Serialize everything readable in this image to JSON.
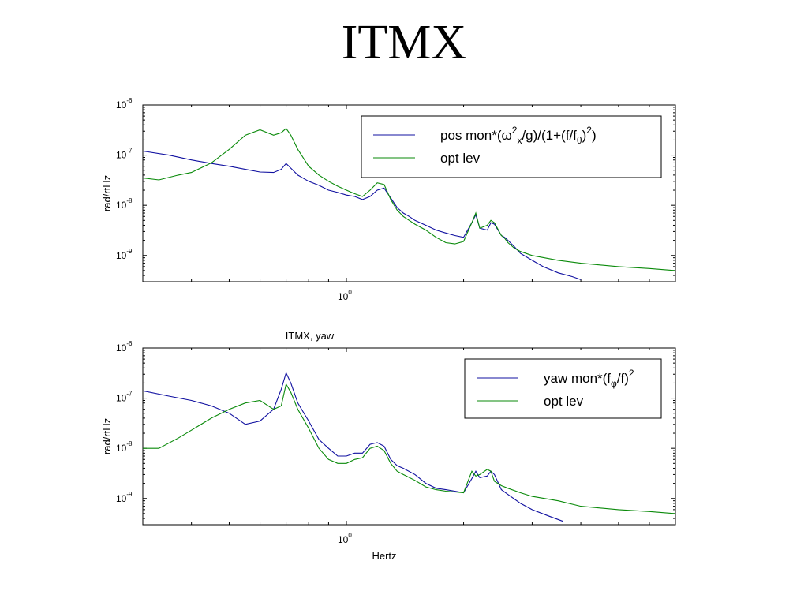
{
  "slide": {
    "title": "ITMX"
  },
  "colors": {
    "blue": "#1010a0",
    "green": "#0a8a0a",
    "frame": "#000000"
  },
  "chart_data": [
    {
      "type": "line",
      "title": "",
      "xlabel": "",
      "ylabel": "rad/rtHz",
      "x_scale": "log",
      "y_scale": "log",
      "xlim": [
        0.3,
        7.0
      ],
      "ylim": [
        3e-10,
        1e-06
      ],
      "x_tick_label": {
        "base": "10",
        "exp": "0"
      },
      "y_tick_labels": [
        {
          "base": "10",
          "exp": "-6"
        },
        {
          "base": "10",
          "exp": "-7"
        },
        {
          "base": "10",
          "exp": "-8"
        },
        {
          "base": "10",
          "exp": "-9"
        }
      ],
      "legend": {
        "position": "top-right",
        "entries": [
          {
            "pre": "pos mon*(ω",
            "sup1": "2",
            "sub1": "x",
            "mid": "/g)/(1+(f/f",
            "sub2": "θ",
            "post": ")",
            "sup2": "2",
            "end": ")"
          },
          {
            "label": "opt lev"
          }
        ]
      },
      "series": [
        {
          "name": "pos mon*(ωx2/g)/(1+(f/fθ)2)",
          "color": "blue",
          "x": [
            0.3,
            0.35,
            0.4,
            0.45,
            0.5,
            0.55,
            0.6,
            0.65,
            0.68,
            0.7,
            0.72,
            0.75,
            0.8,
            0.85,
            0.9,
            0.95,
            1.0,
            1.05,
            1.1,
            1.15,
            1.2,
            1.25,
            1.3,
            1.35,
            1.4,
            1.45,
            1.5,
            1.6,
            1.7,
            1.8,
            1.9,
            2.0,
            2.1,
            2.15,
            2.2,
            2.3,
            2.35,
            2.4,
            2.5,
            2.55,
            2.6,
            2.7,
            2.8,
            3.0,
            3.2,
            3.5,
            3.8,
            4.0
          ],
          "y": [
            1.2e-07,
            1e-07,
            8e-08,
            6.8e-08,
            6e-08,
            5.2e-08,
            4.6e-08,
            4.5e-08,
            5.2e-08,
            6.8e-08,
            5.5e-08,
            4e-08,
            3e-08,
            2.5e-08,
            2e-08,
            1.8e-08,
            1.6e-08,
            1.5e-08,
            1.3e-08,
            1.5e-08,
            2e-08,
            2.2e-08,
            1.4e-08,
            9e-09,
            7e-09,
            6e-09,
            5e-09,
            4e-09,
            3.2e-09,
            2.8e-09,
            2.5e-09,
            2.3e-09,
            4.5e-09,
            6.5e-09,
            3.5e-09,
            3.2e-09,
            4.5e-09,
            4.2e-09,
            2.5e-09,
            2.3e-09,
            2e-09,
            1.5e-09,
            1.1e-09,
            8e-10,
            6e-10,
            4.5e-10,
            3.8e-10,
            3.3e-10
          ]
        },
        {
          "name": "opt lev",
          "color": "green",
          "x": [
            0.3,
            0.33,
            0.37,
            0.4,
            0.45,
            0.5,
            0.55,
            0.6,
            0.65,
            0.68,
            0.7,
            0.72,
            0.75,
            0.8,
            0.85,
            0.9,
            0.95,
            1.0,
            1.05,
            1.1,
            1.15,
            1.2,
            1.25,
            1.3,
            1.35,
            1.4,
            1.45,
            1.5,
            1.6,
            1.7,
            1.8,
            1.9,
            2.0,
            2.1,
            2.15,
            2.2,
            2.3,
            2.35,
            2.4,
            2.5,
            2.55,
            2.6,
            2.7,
            2.8,
            3.0,
            3.5,
            4.0,
            5.0,
            6.0,
            7.0
          ],
          "y": [
            3.5e-08,
            3.2e-08,
            4e-08,
            4.5e-08,
            7e-08,
            1.3e-07,
            2.5e-07,
            3.2e-07,
            2.5e-07,
            2.8e-07,
            3.4e-07,
            2.5e-07,
            1.3e-07,
            6e-08,
            4e-08,
            3e-08,
            2.4e-08,
            2e-08,
            1.7e-08,
            1.5e-08,
            2e-08,
            2.8e-08,
            2.6e-08,
            1.3e-08,
            8e-09,
            6e-09,
            5e-09,
            4.2e-09,
            3.2e-09,
            2.3e-09,
            1.8e-09,
            1.7e-09,
            1.9e-09,
            4.5e-09,
            7e-09,
            3.5e-09,
            4e-09,
            5e-09,
            4.5e-09,
            2.5e-09,
            2.2e-09,
            1.8e-09,
            1.4e-09,
            1.2e-09,
            1e-09,
            8e-10,
            7e-10,
            6e-10,
            5.5e-10,
            5e-10
          ]
        }
      ]
    },
    {
      "type": "line",
      "title": "ITMX, yaw",
      "xlabel": "Hertz",
      "ylabel": "rad/rtHz",
      "x_scale": "log",
      "y_scale": "log",
      "xlim": [
        0.3,
        7.0
      ],
      "ylim": [
        3e-10,
        1e-06
      ],
      "x_tick_label": {
        "base": "10",
        "exp": "0"
      },
      "y_tick_labels": [
        {
          "base": "10",
          "exp": "-6"
        },
        {
          "base": "10",
          "exp": "-7"
        },
        {
          "base": "10",
          "exp": "-8"
        },
        {
          "base": "10",
          "exp": "-9"
        }
      ],
      "legend": {
        "position": "top-right",
        "entries": [
          {
            "pre": "yaw mon*(f",
            "sub1": "φ",
            "mid": "/f)",
            "sup1": "2"
          },
          {
            "label": "opt lev"
          }
        ]
      },
      "series": [
        {
          "name": "yaw mon*(fφ/f)2",
          "color": "blue",
          "x": [
            0.3,
            0.35,
            0.4,
            0.45,
            0.5,
            0.55,
            0.6,
            0.65,
            0.68,
            0.7,
            0.72,
            0.75,
            0.8,
            0.85,
            0.9,
            0.95,
            1.0,
            1.05,
            1.1,
            1.15,
            1.2,
            1.25,
            1.3,
            1.35,
            1.4,
            1.5,
            1.6,
            1.7,
            1.8,
            1.9,
            2.0,
            2.1,
            2.15,
            2.2,
            2.3,
            2.35,
            2.4,
            2.5,
            2.6,
            2.8,
            3.0,
            3.3,
            3.6
          ],
          "y": [
            1.4e-07,
            1.1e-07,
            9e-08,
            7e-08,
            5e-08,
            3e-08,
            3.5e-08,
            6e-08,
            1.5e-07,
            3.2e-07,
            2e-07,
            8e-08,
            3.5e-08,
            1.5e-08,
            1e-08,
            7e-09,
            7e-09,
            8e-09,
            8e-09,
            1.2e-08,
            1.3e-08,
            1.1e-08,
            6e-09,
            4.5e-09,
            4e-09,
            3e-09,
            2e-09,
            1.6e-09,
            1.5e-09,
            1.4e-09,
            1.3e-09,
            2.5e-09,
            3.5e-09,
            2.6e-09,
            2.8e-09,
            3.5e-09,
            3e-09,
            1.5e-09,
            1.2e-09,
            8e-10,
            6e-10,
            4.5e-10,
            3.5e-10
          ]
        },
        {
          "name": "opt lev",
          "color": "green",
          "x": [
            0.3,
            0.33,
            0.37,
            0.4,
            0.45,
            0.5,
            0.55,
            0.6,
            0.65,
            0.68,
            0.7,
            0.72,
            0.75,
            0.8,
            0.85,
            0.9,
            0.95,
            1.0,
            1.05,
            1.1,
            1.15,
            1.2,
            1.25,
            1.3,
            1.35,
            1.4,
            1.5,
            1.6,
            1.7,
            1.8,
            1.9,
            2.0,
            2.1,
            2.15,
            2.2,
            2.3,
            2.35,
            2.4,
            2.5,
            2.6,
            2.8,
            3.0,
            3.5,
            4.0,
            5.0,
            6.0,
            7.0
          ],
          "y": [
            1e-08,
            1e-08,
            1.6e-08,
            2.3e-08,
            4e-08,
            6e-08,
            8e-08,
            9e-08,
            6e-08,
            7e-08,
            1.9e-07,
            1.3e-07,
            6e-08,
            2.5e-08,
            1e-08,
            6e-09,
            5e-09,
            5e-09,
            6e-09,
            6.5e-09,
            1e-08,
            1.1e-08,
            9e-09,
            5e-09,
            3.5e-09,
            3e-09,
            2.3e-09,
            1.7e-09,
            1.5e-09,
            1.4e-09,
            1.35e-09,
            1.3e-09,
            3.5e-09,
            2.8e-09,
            3e-09,
            3.8e-09,
            3.5e-09,
            2.2e-09,
            1.8e-09,
            1.6e-09,
            1.3e-09,
            1.1e-09,
            9e-10,
            7e-10,
            6e-10,
            5.5e-10,
            5e-10
          ]
        }
      ]
    }
  ]
}
